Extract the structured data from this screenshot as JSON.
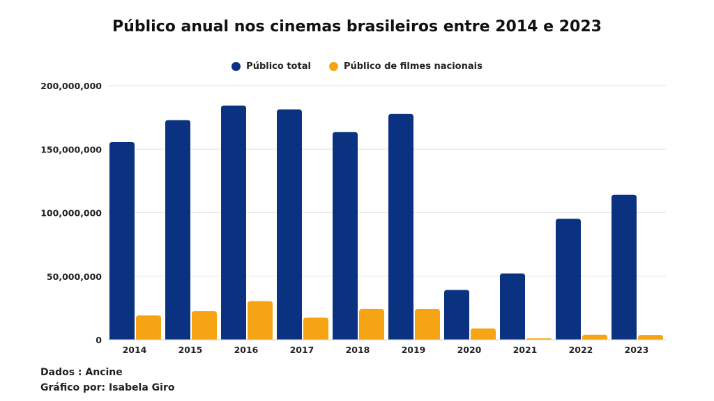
{
  "chart_data": {
    "type": "bar",
    "title": "Público anual nos cinemas brasileiros entre 2014 e 2023",
    "xlabel": "",
    "ylabel": "",
    "categories": [
      "2014",
      "2015",
      "2016",
      "2017",
      "2018",
      "2019",
      "2020",
      "2021",
      "2022",
      "2023"
    ],
    "series": [
      {
        "name": "Público total",
        "color": "#0b3280",
        "values": [
          155600000,
          172900000,
          184300000,
          181200000,
          163400000,
          177700000,
          39200000,
          52200000,
          95200000,
          114100000
        ]
      },
      {
        "name": "Público de filmes nacionais",
        "color": "#f7a414",
        "values": [
          19100000,
          22500000,
          30400000,
          17400000,
          24200000,
          24100000,
          8900000,
          1100000,
          4000000,
          3800000
        ]
      }
    ],
    "ylim": [
      0,
      200000000
    ],
    "yticks": [
      0,
      50000000,
      100000000,
      150000000,
      200000000
    ],
    "ytick_labels": [
      "0",
      "50,000,000",
      "100,000,000",
      "150,000,000",
      "200,000,000"
    ],
    "grid": true,
    "legend_position": "top-center"
  },
  "footer": {
    "source": "Dados : Ancine",
    "credit": "Gráfico por: Isabela Giro"
  }
}
